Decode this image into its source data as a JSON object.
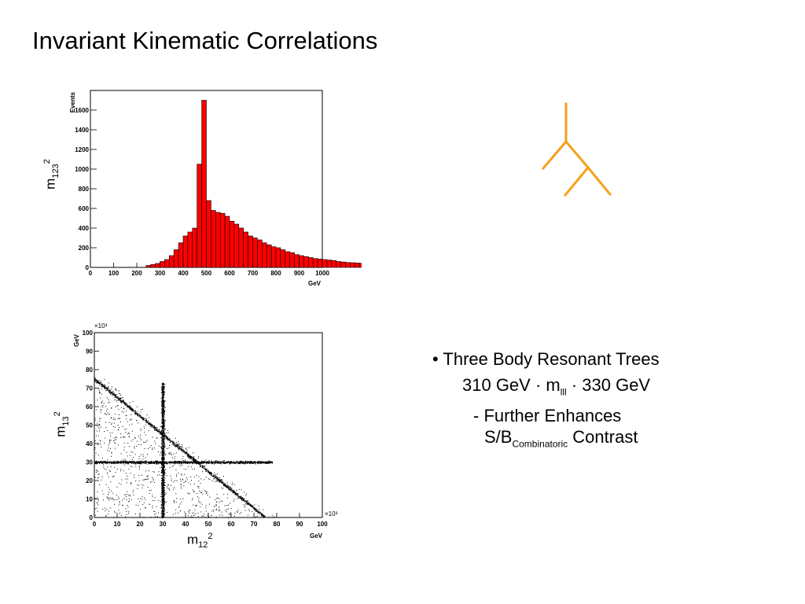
{
  "title": "Invariant Kinematic Correlations",
  "colors": {
    "histogram_fill": "#ff0000",
    "tree": "#f4a11a",
    "scatter": "#000000"
  },
  "label_m123": {
    "base": "m",
    "sub": "123",
    "sup": "2"
  },
  "label_m13": {
    "base": "m",
    "sub": "13",
    "sup": "2"
  },
  "label_m12": {
    "base": "m",
    "sub": "12",
    "sup": "2"
  },
  "bullets": {
    "line1": "• Three Body Resonant Trees",
    "line2_pre": "310 GeV · m",
    "line2_sub": "lll",
    "line2_post": " · 330 GeV",
    "line3": "- Further Enhances",
    "line4_pre": "S/B",
    "line4_sub": "Combinatoric",
    "line4_post": " Contrast"
  },
  "chart_data": [
    {
      "type": "bar",
      "ylabel": "Events",
      "xlabel": "GeV",
      "xlim": [
        0,
        1000
      ],
      "ylim": [
        0,
        1800
      ],
      "xticks": [
        "0",
        "100",
        "200",
        "300",
        "400",
        "500",
        "600",
        "700",
        "800",
        "900",
        "1000"
      ],
      "yticks": [
        "0",
        "200",
        "400",
        "600",
        "800",
        "1000",
        "1200",
        "1400",
        "1600"
      ],
      "bin_width": 20,
      "bin_edges_start": 0,
      "values": [
        0,
        0,
        0,
        0,
        0,
        0,
        0,
        0,
        0,
        0,
        0,
        0,
        20,
        30,
        40,
        60,
        80,
        120,
        180,
        250,
        320,
        360,
        400,
        1050,
        1700,
        680,
        580,
        560,
        550,
        520,
        470,
        440,
        400,
        360,
        320,
        300,
        280,
        250,
        230,
        210,
        200,
        180,
        160,
        150,
        130,
        120,
        110,
        100,
        90,
        85,
        80,
        75,
        70,
        60,
        55,
        50,
        48,
        45,
        42,
        40
      ]
    },
    {
      "type": "scatter",
      "ylabel": "GeV",
      "xlabel": "GeV",
      "xlim": [
        0,
        100
      ],
      "ylim": [
        0,
        100
      ],
      "x_multiplier": "×10³",
      "y_multiplier": "×10³",
      "xticks": [
        "0",
        "10",
        "20",
        "30",
        "40",
        "50",
        "60",
        "70",
        "80",
        "90",
        "100"
      ],
      "yticks": [
        "0",
        "10",
        "20",
        "30",
        "40",
        "50",
        "60",
        "70",
        "80",
        "90",
        "100"
      ],
      "features": {
        "horizontal_band_y": 30,
        "vertical_band_x": 30,
        "diagonal_edge_sum": 75
      }
    }
  ]
}
